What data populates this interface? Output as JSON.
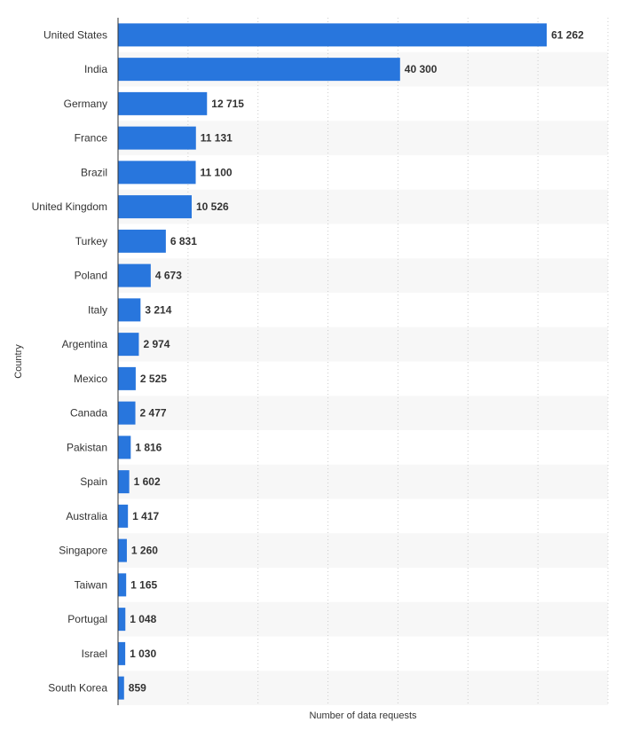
{
  "chart_data": {
    "type": "bar",
    "orientation": "horizontal",
    "categories": [
      "United States",
      "India",
      "Germany",
      "France",
      "Brazil",
      "United Kingdom",
      "Turkey",
      "Poland",
      "Italy",
      "Argentina",
      "Mexico",
      "Canada",
      "Pakistan",
      "Spain",
      "Australia",
      "Singapore",
      "Taiwan",
      "Portugal",
      "Israel",
      "South Korea"
    ],
    "values": [
      61262,
      40300,
      12715,
      11131,
      11100,
      10526,
      6831,
      4673,
      3214,
      2974,
      2525,
      2477,
      1816,
      1602,
      1417,
      1260,
      1165,
      1048,
      1030,
      859
    ],
    "value_labels": [
      "61 262",
      "40 300",
      "12 715",
      "11 131",
      "11 100",
      "10 526",
      "6 831",
      "4 673",
      "3 214",
      "2 974",
      "2 525",
      "2 477",
      "1 816",
      "1 602",
      "1 417",
      "1 260",
      "1 165",
      "1 048",
      "1 030",
      "859"
    ],
    "xlabel": "Number of data requests",
    "ylabel": "Country",
    "xlim": [
      0,
      70000
    ],
    "grid": true,
    "legend": "none",
    "colors": {
      "bar": "#2876dd",
      "band": "#f7f7f7",
      "grid": "#cccccc",
      "axis": "#333333",
      "text": "#333333"
    }
  }
}
